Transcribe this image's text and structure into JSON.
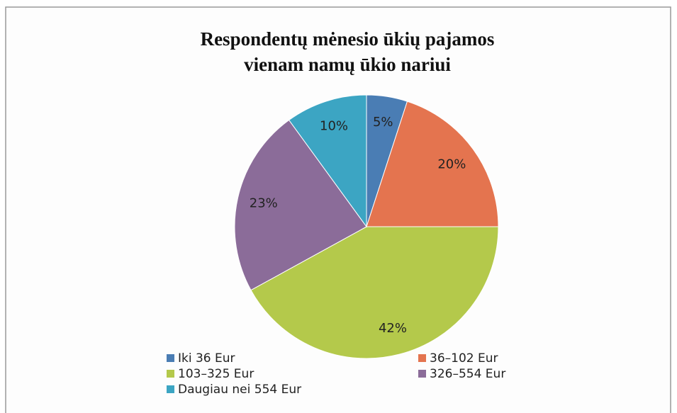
{
  "chart_data": {
    "type": "pie",
    "title": [
      "Respondentų mėnesio ūkių pajamos",
      "vienam namų ūkio nariui"
    ],
    "categories": [
      "Iki 36 Eur",
      "36–102 Eur",
      "103–325 Eur",
      "326–554 Eur",
      "Daugiau nei 554 Eur"
    ],
    "values": [
      5,
      20,
      42,
      23,
      10
    ],
    "value_labels": [
      "5%",
      "20%",
      "42%",
      "23%",
      "10%"
    ],
    "colors": [
      "#4a7db4",
      "#e4744f",
      "#b4c94b",
      "#8b6c99",
      "#3ca5c3"
    ],
    "legend": "bottom"
  }
}
